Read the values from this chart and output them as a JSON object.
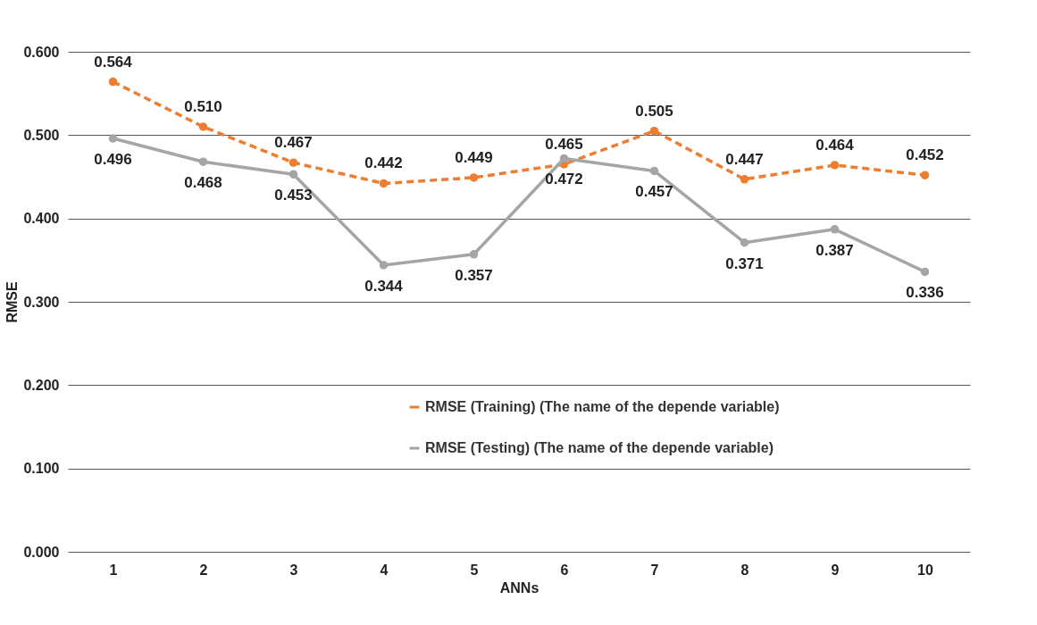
{
  "chart_data": {
    "type": "line",
    "xlabel": "ANNs",
    "ylabel": "RMSE",
    "categories": [
      "1",
      "2",
      "3",
      "4",
      "5",
      "6",
      "7",
      "8",
      "9",
      "10"
    ],
    "series": [
      {
        "name": "RMSE (Training) (The name of the depende variable)",
        "color": "#ed7d31",
        "line_style": "dashed",
        "values": [
          0.564,
          0.51,
          0.467,
          0.442,
          0.449,
          0.465,
          0.505,
          0.447,
          0.464,
          0.452
        ],
        "value_labels": [
          "0.564",
          "0.510",
          "0.467",
          "0.442",
          "0.449",
          "0.465",
          "0.505",
          "0.447",
          "0.464",
          "0.452"
        ]
      },
      {
        "name": "RMSE (Testing) (The name of the depende variable)",
        "color": "#a5a5a5",
        "line_style": "solid",
        "values": [
          0.496,
          0.468,
          0.453,
          0.344,
          0.357,
          0.472,
          0.457,
          0.371,
          0.387,
          0.336
        ],
        "value_labels": [
          "0.496",
          "0.468",
          "0.453",
          "0.344",
          "0.357",
          "0.472",
          "0.457",
          "0.371",
          "0.387",
          "0.336"
        ]
      }
    ],
    "ylim": [
      0,
      0.6
    ],
    "yticks": [
      {
        "value": 0,
        "label": "0.000"
      },
      {
        "value": 0.1,
        "label": "0.100"
      },
      {
        "value": 0.2,
        "label": "0.200"
      },
      {
        "value": 0.3,
        "label": "0.300"
      },
      {
        "value": 0.4,
        "label": "0.400"
      },
      {
        "value": 0.5,
        "label": "0.500"
      },
      {
        "value": 0.6,
        "label": "0.600"
      }
    ],
    "grid": "y",
    "legend": "bottom right",
    "marker": "circle"
  }
}
